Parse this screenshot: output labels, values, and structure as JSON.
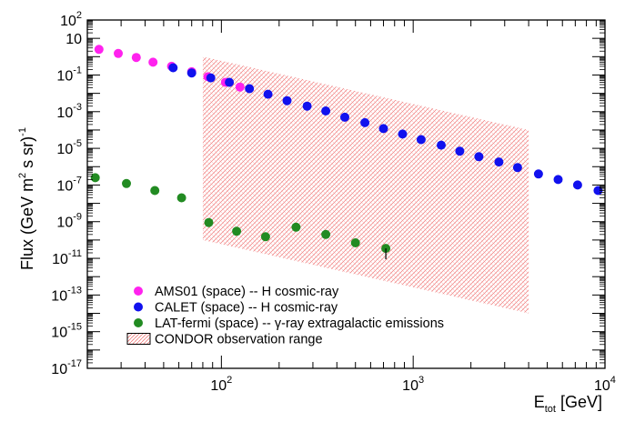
{
  "chart_data": {
    "type": "scatter",
    "xscale": "log",
    "yscale": "log",
    "xlim": [
      20,
      10000
    ],
    "ylim": [
      1e-17,
      100
    ],
    "ylabel": {
      "base": "Flux (GeV m",
      "sup1": "2",
      "mid": " s sr)",
      "sup2": "-1"
    },
    "xlabel": {
      "base": "E",
      "sub": "tot",
      "rest": " [GeV]"
    },
    "x_ticks": [
      {
        "value": 100,
        "base": "10",
        "exp": "2"
      },
      {
        "value": 1000,
        "base": "10",
        "exp": "3"
      },
      {
        "value": 10000,
        "base": "10",
        "exp": "4"
      }
    ],
    "y_ticks": [
      {
        "value": 100,
        "base": "10",
        "exp": "2"
      },
      {
        "value": 10,
        "base": "10",
        "exp": ""
      },
      {
        "value": 0.1,
        "base": "10",
        "exp": "-1"
      },
      {
        "value": 0.001,
        "base": "10",
        "exp": "-3"
      },
      {
        "value": 1e-05,
        "base": "10",
        "exp": "-5"
      },
      {
        "value": 1e-07,
        "base": "10",
        "exp": "-7"
      },
      {
        "value": 1e-09,
        "base": "10",
        "exp": "-9"
      },
      {
        "value": 1e-11,
        "base": "10",
        "exp": "-11"
      },
      {
        "value": 1e-13,
        "base": "10",
        "exp": "-13"
      },
      {
        "value": 1e-15,
        "base": "10",
        "exp": "-15"
      },
      {
        "value": 1e-17,
        "base": "10",
        "exp": "-17"
      }
    ],
    "series": [
      {
        "name": "AMS01 (space) -- H cosmic-ray",
        "color": "#ff22ee",
        "points": [
          [
            23,
            2.5
          ],
          [
            29,
            1.5
          ],
          [
            36,
            0.9
          ],
          [
            44,
            0.5
          ],
          [
            55,
            0.3
          ],
          [
            70,
            0.15
          ],
          [
            85,
            0.08
          ],
          [
            105,
            0.04
          ],
          [
            125,
            0.022
          ]
        ]
      },
      {
        "name": "CALET (space) -- H cosmic-ray",
        "color": "#1111ee",
        "points": [
          [
            56,
            0.25
          ],
          [
            70,
            0.13
          ],
          [
            88,
            0.07
          ],
          [
            110,
            0.04
          ],
          [
            140,
            0.018
          ],
          [
            175,
            0.009
          ],
          [
            220,
            0.004
          ],
          [
            280,
            0.002
          ],
          [
            350,
            0.0011
          ],
          [
            440,
            0.0005
          ],
          [
            560,
            0.00025
          ],
          [
            700,
            0.00012
          ],
          [
            880,
            6e-05
          ],
          [
            1100,
            3e-05
          ],
          [
            1400,
            1.5e-05
          ],
          [
            1750,
            7e-06
          ],
          [
            2200,
            3.5e-06
          ],
          [
            2800,
            1.8e-06
          ],
          [
            3500,
            9e-07
          ],
          [
            4500,
            4e-07
          ],
          [
            5700,
            2e-07
          ],
          [
            7200,
            1e-07
          ],
          [
            9200,
            5e-08
          ]
        ]
      },
      {
        "name": "LAT-fermi (space) -- γ-ray extragalactic emissions",
        "color": "#228B22",
        "points": [
          [
            22,
            2.5e-07
          ],
          [
            32,
            1.2e-07
          ],
          [
            45,
            5e-08
          ],
          [
            62,
            2e-08
          ],
          [
            86,
            9e-10
          ],
          [
            120,
            3e-10
          ],
          [
            170,
            1.5e-10
          ],
          [
            245,
            5e-10
          ],
          [
            350,
            2e-10
          ],
          [
            500,
            7e-11
          ],
          [
            720,
            3.5e-11
          ]
        ]
      }
    ],
    "band": {
      "name": "CONDOR observation range",
      "color": "#ee4444",
      "x": [
        80,
        4000
      ],
      "top_y": [
        1,
        0.0001
      ],
      "bottom_y": [
        1e-10,
        1e-14
      ]
    },
    "legend_position": "bottom-left"
  }
}
